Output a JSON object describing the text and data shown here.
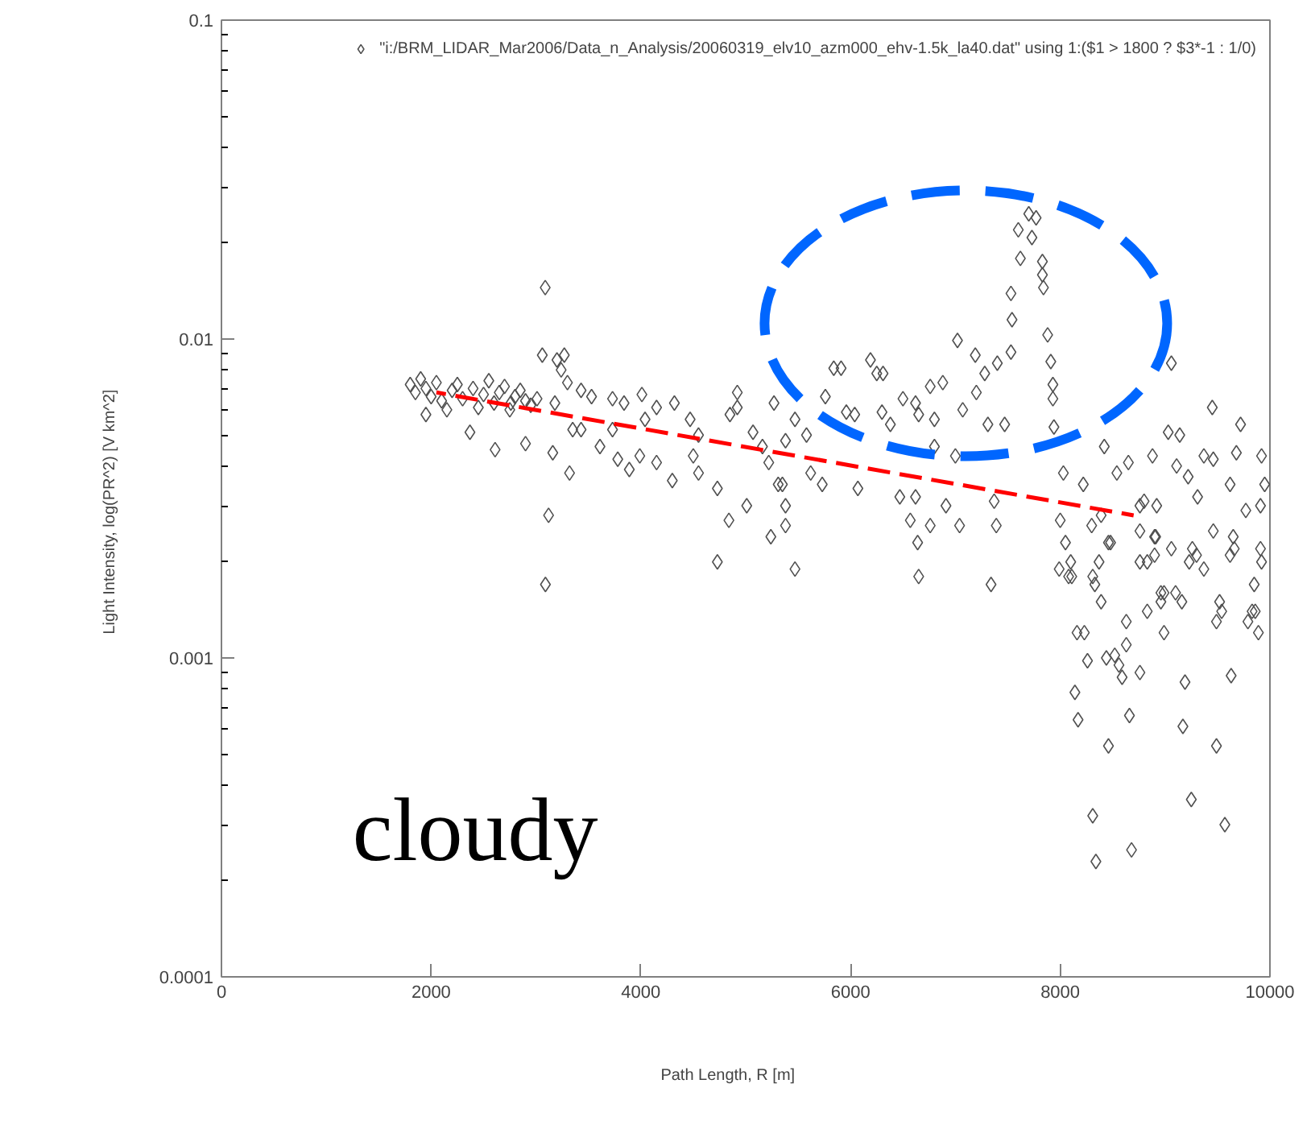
{
  "chart_data": {
    "type": "scatter",
    "xlabel": "Path Length,  R        [m]",
    "ylabel": "Light Intensity,  log(PR^2)      [V km^2]",
    "xlim": [
      0,
      10000
    ],
    "xticks": [
      0,
      2000,
      4000,
      6000,
      8000,
      10000
    ],
    "ylim": [
      0.0001,
      0.1
    ],
    "yticks": [
      0.0001,
      0.001,
      0.01,
      0.1
    ],
    "log": "y",
    "grid": false,
    "legend": "top right",
    "marker": "diamond",
    "annotations": [
      "cloudy"
    ],
    "series": [
      {
        "name": "\"i:/BRM_LIDAR_Mar2006/Data_n_Analysis/20060319_elv10_azm000_ehv-1.5k_la40.dat\" using 1:($1 > 1800 ? $3*-1 : 1/0)",
        "color": "#505050",
        "x": [
          1800,
          1850,
          1900,
          1950,
          1950,
          2000,
          2050,
          2100,
          2150,
          2200,
          2250,
          2300,
          2370,
          2400,
          2450,
          2500,
          2550,
          2600,
          2610,
          2650,
          2700,
          2750,
          2760,
          2800,
          2850,
          2900,
          2900,
          2950,
          3010,
          3060,
          3088,
          3090,
          3120,
          3160,
          3180,
          3200,
          3240,
          3270,
          3300,
          3320,
          3350,
          3430,
          3430,
          3530,
          3610,
          3730,
          3730,
          3780,
          3840,
          3890,
          3990,
          4010,
          4040,
          4150,
          4150,
          4300,
          4320,
          4470,
          4500,
          4550,
          4550,
          4730,
          4730,
          4840,
          4850,
          4920,
          4920,
          5010,
          5070,
          5160,
          5220,
          5240,
          5270,
          5310,
          5350,
          5380,
          5380,
          5380,
          5470,
          5470,
          5580,
          5620,
          5730,
          5760,
          5840,
          5910,
          5960,
          6040,
          6070,
          6190,
          6250,
          6310,
          6300,
          6380,
          6470,
          6500,
          6570,
          6620,
          6620,
          6640,
          6650,
          6650,
          6760,
          6760,
          6800,
          6800,
          6880,
          6910,
          7000,
          7020,
          7040,
          7070,
          7190,
          7200,
          7280,
          7310,
          7340,
          7370,
          7390,
          7400,
          7470,
          7530,
          7530,
          7540,
          7600,
          7620,
          7700,
          7730,
          7770,
          7830,
          7830,
          7840,
          7880,
          7910,
          7930,
          7930,
          7940,
          7990,
          8000,
          8030,
          8050,
          8080,
          8100,
          8110,
          8140,
          8160,
          8170,
          8220,
          8230,
          8260,
          8300,
          8310,
          8310,
          8330,
          8340,
          8370,
          8390,
          8390,
          8420,
          8440,
          8460,
          8460,
          8480,
          8520,
          8540,
          8560,
          8590,
          8630,
          8630,
          8650,
          8660,
          8680,
          8760,
          8760,
          8760,
          8760,
          8800,
          8830,
          8830,
          8880,
          8900,
          8900,
          8910,
          8920,
          8960,
          8960,
          8990,
          8990,
          9030,
          9060,
          9060,
          9100,
          9110,
          9140,
          9160,
          9170,
          9190,
          9220,
          9230,
          9250,
          9260,
          9300,
          9310,
          9370,
          9370,
          9450,
          9460,
          9460,
          9490,
          9490,
          9520,
          9540,
          9570,
          9620,
          9620,
          9630,
          9650,
          9660,
          9680,
          9720,
          9770,
          9790,
          9830,
          9850,
          9860,
          9890,
          9910,
          9910,
          9920,
          9920,
          9950
        ],
        "values": [
          0.0072,
          0.0068,
          0.0075,
          0.007,
          0.0058,
          0.0066,
          0.0073,
          0.0064,
          0.006,
          0.0069,
          0.0072,
          0.0065,
          0.0051,
          0.007,
          0.0061,
          0.0067,
          0.0074,
          0.0063,
          0.0045,
          0.0068,
          0.0071,
          0.006,
          0.0063,
          0.0066,
          0.0069,
          0.0047,
          0.0064,
          0.0062,
          0.0065,
          0.0089,
          0.0145,
          0.0017,
          0.0028,
          0.0044,
          0.0063,
          0.0086,
          0.008,
          0.0089,
          0.0073,
          0.0038,
          0.0052,
          0.0069,
          0.0052,
          0.0066,
          0.0046,
          0.0065,
          0.0052,
          0.0042,
          0.0063,
          0.0039,
          0.0043,
          0.0067,
          0.0056,
          0.0061,
          0.0041,
          0.0036,
          0.0063,
          0.0056,
          0.0043,
          0.0038,
          0.005,
          0.0034,
          0.002,
          0.0027,
          0.0058,
          0.0068,
          0.0061,
          0.003,
          0.0051,
          0.0046,
          0.0041,
          0.0024,
          0.0063,
          0.0035,
          0.0035,
          0.003,
          0.0026,
          0.0048,
          0.0019,
          0.0056,
          0.005,
          0.0038,
          0.0035,
          0.0066,
          0.0081,
          0.0081,
          0.0059,
          0.0058,
          0.0034,
          0.0086,
          0.0078,
          0.0078,
          0.0059,
          0.0054,
          0.0032,
          0.0065,
          0.0027,
          0.0063,
          0.0032,
          0.0023,
          0.0058,
          0.0018,
          0.0071,
          0.0026,
          0.0056,
          0.0046,
          0.0073,
          0.003,
          0.0043,
          0.0099,
          0.0026,
          0.006,
          0.0089,
          0.0068,
          0.0078,
          0.0054,
          0.0017,
          0.0031,
          0.0026,
          0.0084,
          0.0054,
          0.0091,
          0.0139,
          0.0115,
          0.022,
          0.0179,
          0.0247,
          0.0208,
          0.024,
          0.0175,
          0.0159,
          0.0145,
          0.0103,
          0.0085,
          0.0072,
          0.0065,
          0.0053,
          0.0019,
          0.0027,
          0.0038,
          0.0023,
          0.0018,
          0.002,
          0.0018,
          0.00078,
          0.0012,
          0.00064,
          0.0035,
          0.0012,
          0.00098,
          0.0026,
          0.0018,
          0.00032,
          0.0017,
          0.00023,
          0.002,
          0.0028,
          0.0015,
          0.0046,
          0.001,
          0.0023,
          0.00053,
          0.0023,
          0.00102,
          0.0038,
          0.00095,
          0.00087,
          0.0013,
          0.0011,
          0.0041,
          0.00066,
          0.00025,
          0.0025,
          0.003,
          0.0009,
          0.002,
          0.0031,
          0.0014,
          0.002,
          0.0043,
          0.0024,
          0.0021,
          0.0024,
          0.003,
          0.0015,
          0.0016,
          0.0012,
          0.0016,
          0.0051,
          0.0084,
          0.0022,
          0.0016,
          0.004,
          0.005,
          0.0015,
          0.00061,
          0.00084,
          0.0037,
          0.002,
          0.00036,
          0.0022,
          0.0021,
          0.0032,
          0.0043,
          0.0019,
          0.0061,
          0.0042,
          0.0025,
          0.0013,
          0.00053,
          0.0015,
          0.0014,
          0.0003,
          0.0035,
          0.0021,
          0.00088,
          0.0024,
          0.0022,
          0.0044,
          0.0054,
          0.0029,
          0.0013,
          0.0014,
          0.0017,
          0.0014,
          0.0012,
          0.003,
          0.0022,
          0.002,
          0.0043,
          0.0035
        ]
      },
      {
        "type": "line",
        "color": "#ff0000",
        "line_style": "dashed",
        "marker": "none",
        "x": [
          2050,
          8700
        ],
        "values": [
          0.0068,
          0.0028
        ]
      }
    ]
  }
}
